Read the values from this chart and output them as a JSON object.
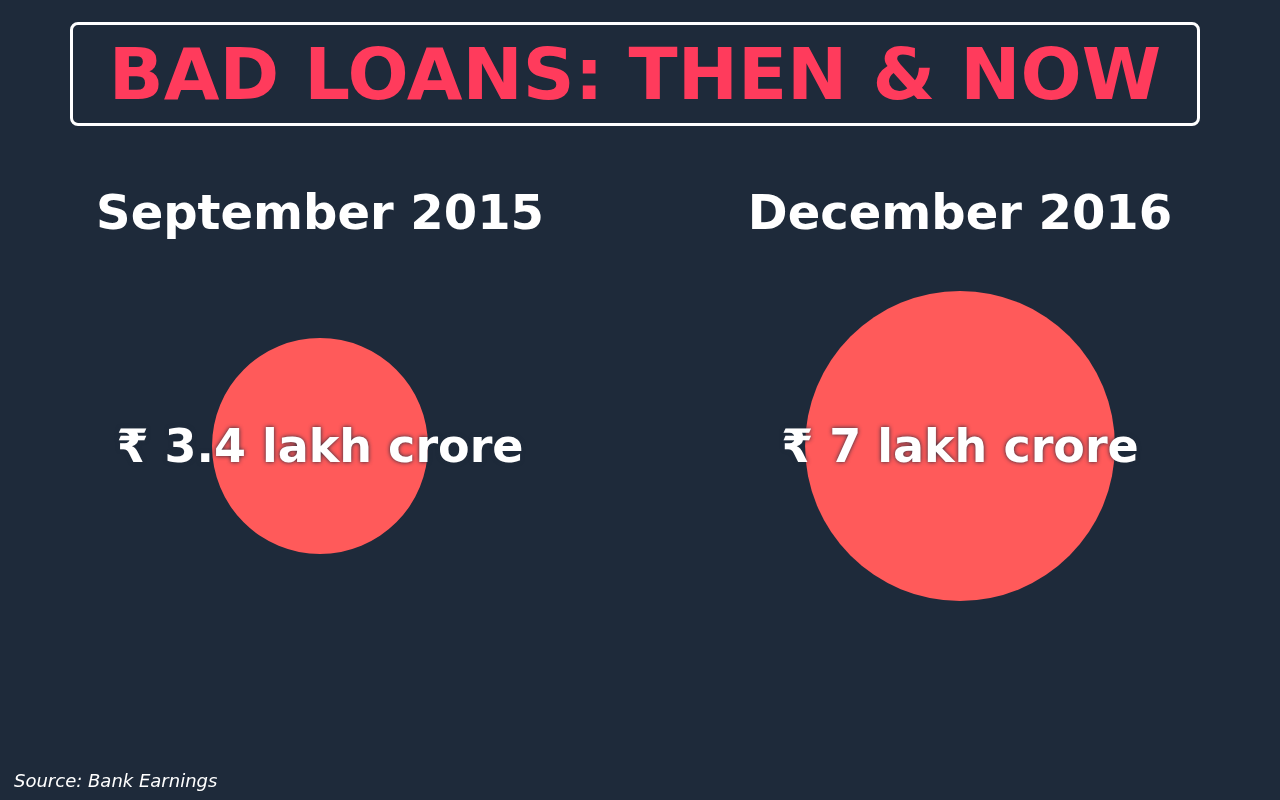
{
  "chart_data": {
    "type": "other",
    "title": "BAD LOANS: THEN & NOW",
    "categories": [
      "September 2015",
      "December 2016"
    ],
    "values": [
      3.4,
      7
    ],
    "value_labels": [
      "₹ 3.4 lakh crore",
      "₹ 7 lakh crore"
    ],
    "color": "#ff5a5a",
    "annotations": [
      "Source: Bank Earnings"
    ]
  }
}
